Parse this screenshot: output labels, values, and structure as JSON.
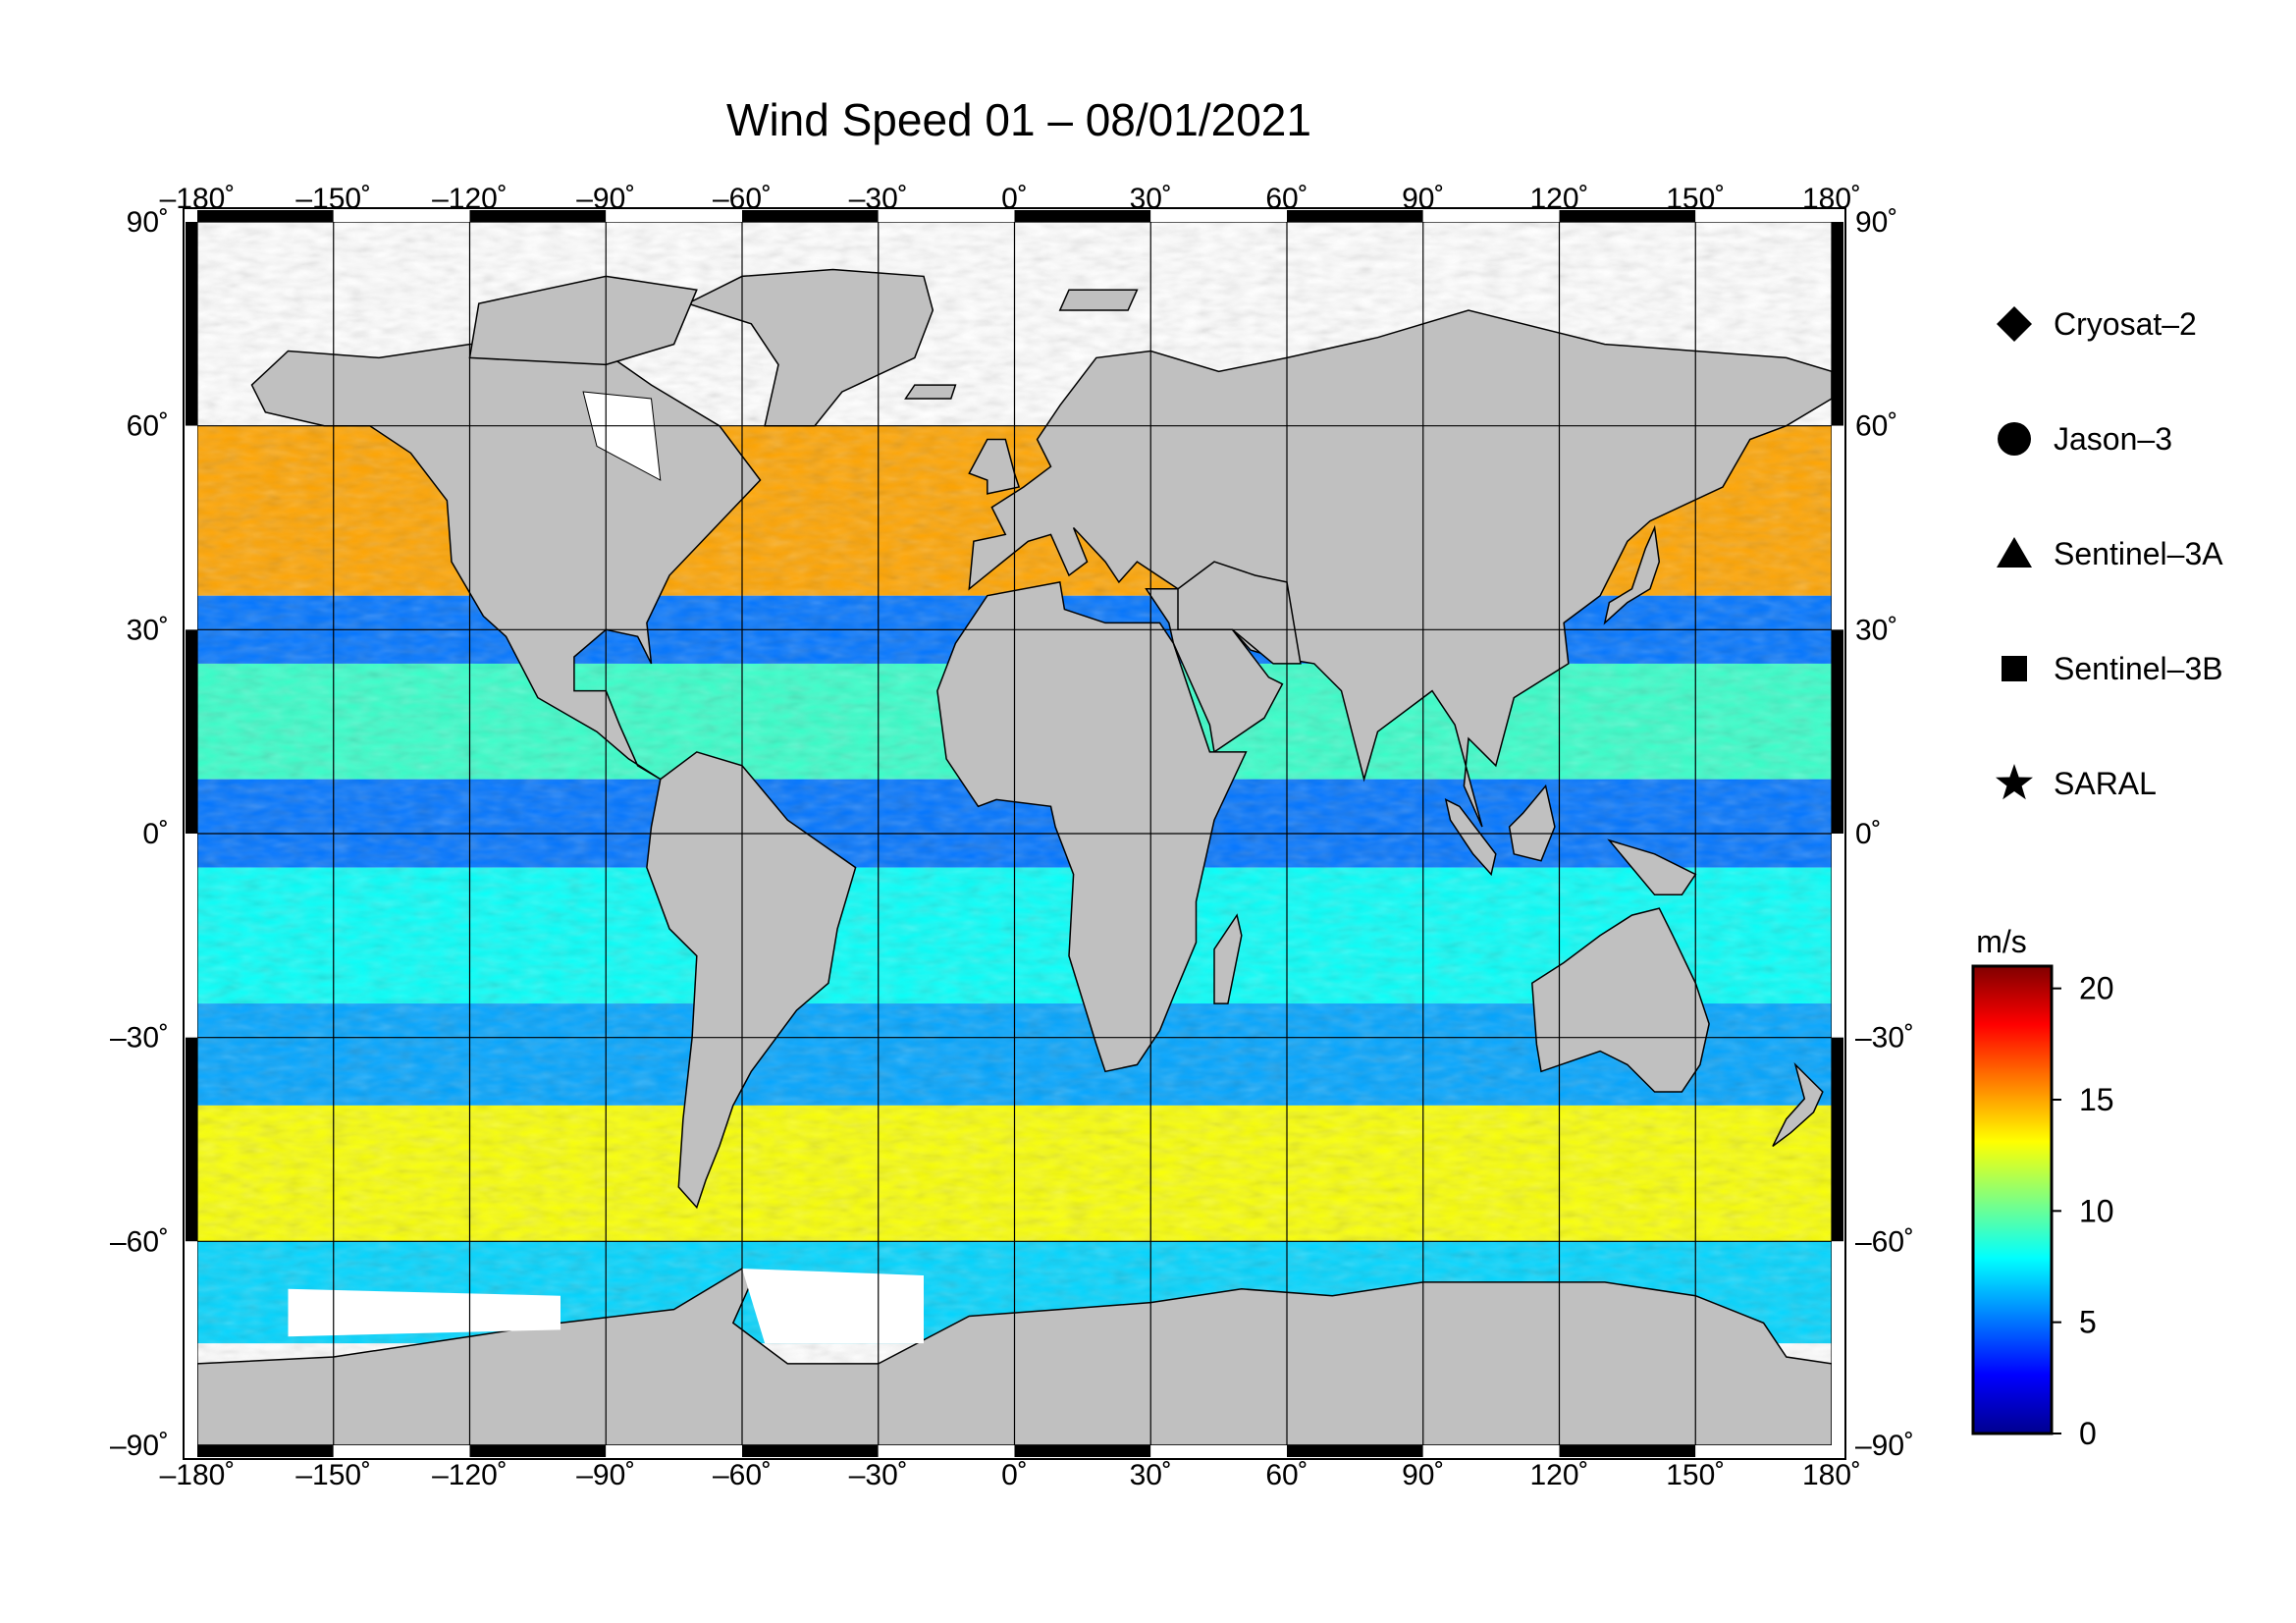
{
  "chart_data": {
    "type": "heatmap",
    "title": "Wind Speed 01 – 08/01/2021",
    "map": {
      "projection": "equirectangular",
      "lon_range": [
        -180,
        180
      ],
      "lat_range": [
        -90,
        90
      ],
      "grid": true,
      "land_color": "#c0c0c0",
      "no_data_color": "#ffffff"
    },
    "x_ticks": [
      "–180˚",
      "–150˚",
      "–120˚",
      "–90˚",
      "–60˚",
      "–30˚",
      "0˚",
      "30˚",
      "60˚",
      "90˚",
      "120˚",
      "150˚",
      "180˚"
    ],
    "x_tick_values": [
      -180,
      -150,
      -120,
      -90,
      -60,
      -30,
      0,
      30,
      60,
      90,
      120,
      150,
      180
    ],
    "y_ticks": [
      "90˚",
      "60˚",
      "30˚",
      "0˚",
      "–30˚",
      "–60˚",
      "–90˚"
    ],
    "y_tick_values": [
      90,
      60,
      30,
      0,
      -30,
      -60,
      -90
    ],
    "legend": {
      "placement": "right",
      "items": [
        {
          "symbol": "diamond",
          "label": "Cryosat–2"
        },
        {
          "symbol": "circle",
          "label": "Jason–3"
        },
        {
          "symbol": "triangle",
          "label": "Sentinel–3A"
        },
        {
          "symbol": "square",
          "label": "Sentinel–3B"
        },
        {
          "symbol": "star",
          "label": "SARAL"
        }
      ]
    },
    "colorbar": {
      "unit": "m/s",
      "range": [
        0,
        21
      ],
      "ticks": [
        0,
        5,
        10,
        15,
        20
      ],
      "tick_labels": [
        "0",
        "5",
        "10",
        "15",
        "20"
      ],
      "colormap": [
        "#00008f",
        "#0000ff",
        "#0080ff",
        "#00ffff",
        "#80ff80",
        "#ffff00",
        "#ff8000",
        "#ff0000",
        "#800000"
      ]
    },
    "wind_bands": [
      {
        "lat_from": 60,
        "lat_to": 35,
        "speed": 15
      },
      {
        "lat_from": 35,
        "lat_to": 25,
        "speed": 5
      },
      {
        "lat_from": 25,
        "lat_to": 8,
        "speed": 9
      },
      {
        "lat_from": 8,
        "lat_to": -5,
        "speed": 5
      },
      {
        "lat_from": -5,
        "lat_to": -25,
        "speed": 8
      },
      {
        "lat_from": -25,
        "lat_to": -40,
        "speed": 6
      },
      {
        "lat_from": -40,
        "lat_to": -60,
        "speed": 13
      },
      {
        "lat_from": -60,
        "lat_to": -75,
        "speed": 7
      }
    ]
  }
}
